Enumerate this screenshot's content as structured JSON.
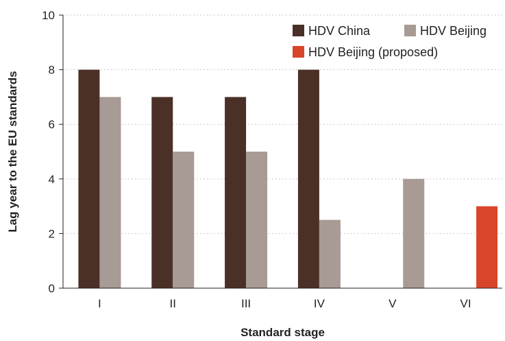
{
  "chart_data": {
    "type": "bar",
    "categories": [
      "I",
      "II",
      "III",
      "IV",
      "V",
      "VI"
    ],
    "series": [
      {
        "name": "HDV China",
        "color": "#4a3027",
        "values": [
          8,
          7,
          7,
          8,
          null,
          null
        ]
      },
      {
        "name": "HDV Beijing",
        "color": "#a89a94",
        "values": [
          7,
          5,
          5,
          2.5,
          4,
          null
        ]
      },
      {
        "name": "HDV Beijing (proposed)",
        "color": "#d9452b",
        "values": [
          null,
          null,
          null,
          null,
          null,
          3
        ]
      }
    ],
    "xlabel": "Standard stage",
    "ylabel": "Lag year to the EU standards",
    "ylim": [
      0,
      10
    ],
    "yticks": [
      0,
      2,
      4,
      6,
      8,
      10
    ],
    "grid": true,
    "legend_position": "top-right"
  }
}
